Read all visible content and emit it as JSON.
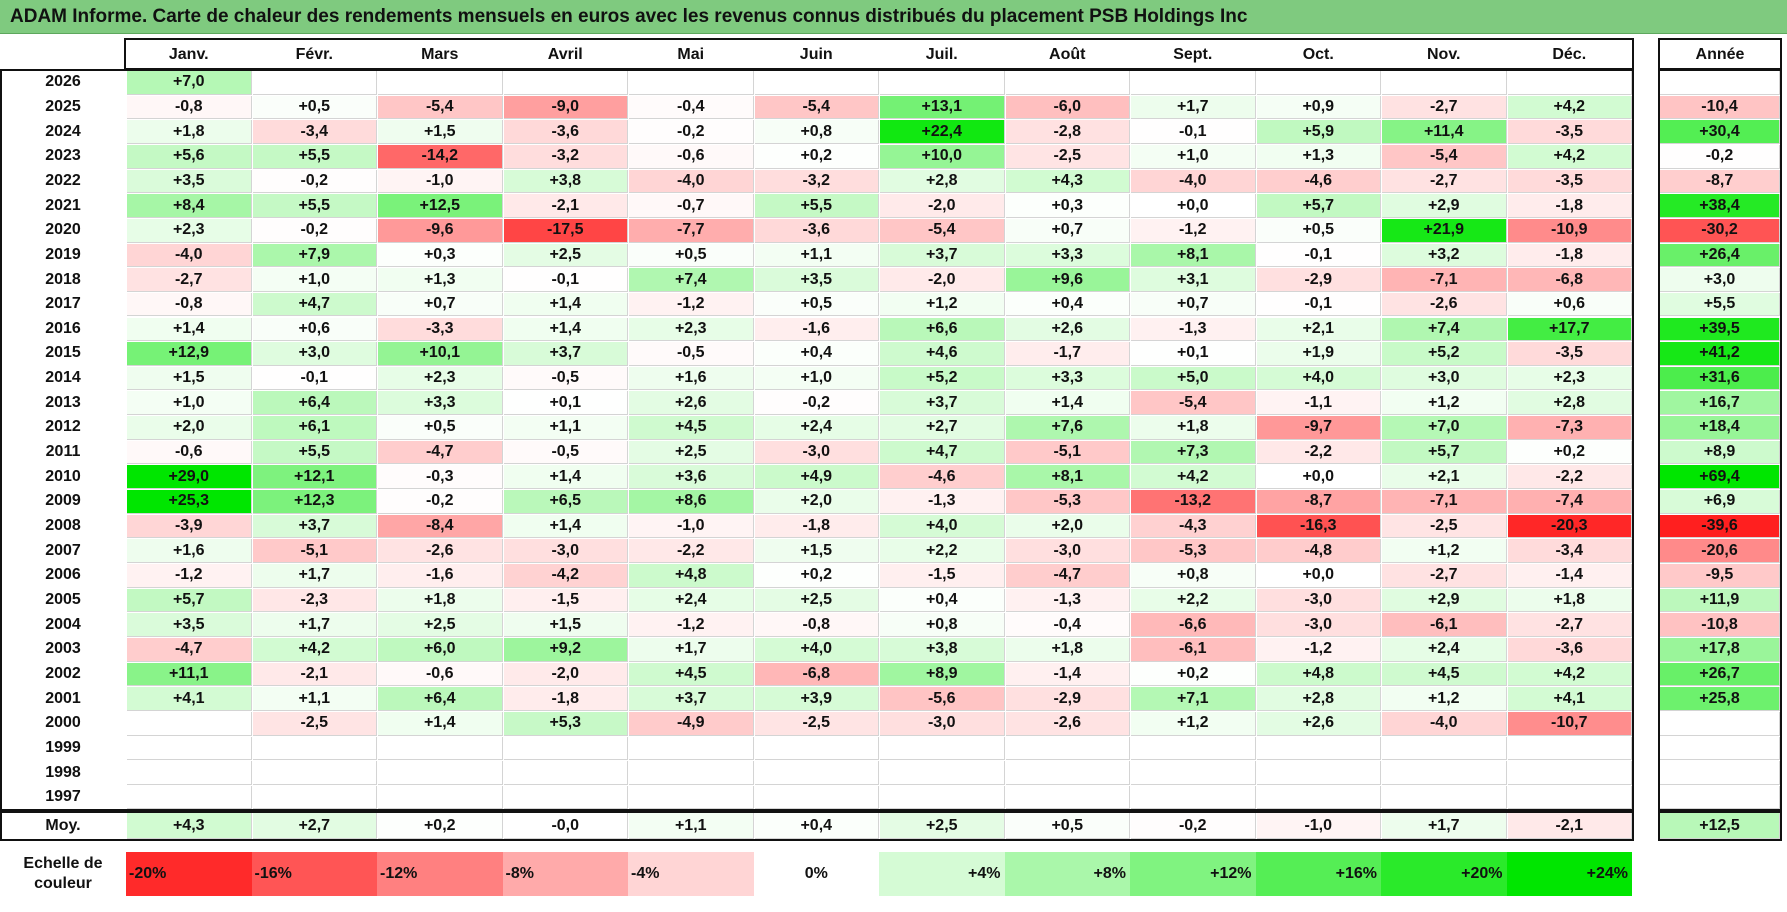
{
  "title": "ADAM Informe. Carte de chaleur des rendements mensuels en euros avec les revenus connus distribués du placement PSB Holdings Inc",
  "chart_data": {
    "type": "heatmap",
    "title": "ADAM Informe. Carte de chaleur des rendements mensuels en euros avec les revenus connus distribués du placement PSB Holdings Inc",
    "months": [
      "Janv.",
      "Févr.",
      "Mars",
      "Avril",
      "Mai",
      "Juin",
      "Juil.",
      "Août",
      "Sept.",
      "Oct.",
      "Nov.",
      "Déc."
    ],
    "year_header": "Année",
    "avg_label": "Moy.",
    "rows": [
      {
        "year": "2026",
        "values": [
          "+7,0",
          "",
          "",
          "",
          "",
          "",
          "",
          "",
          "",
          "",
          "",
          ""
        ],
        "annual": ""
      },
      {
        "year": "2025",
        "values": [
          "-0,8",
          "+0,5",
          "-5,4",
          "-9,0",
          "-0,4",
          "-5,4",
          "+13,1",
          "-6,0",
          "+1,7",
          "+0,9",
          "-2,7",
          "+4,2"
        ],
        "annual": "-10,4"
      },
      {
        "year": "2024",
        "values": [
          "+1,8",
          "-3,4",
          "+1,5",
          "-3,6",
          "-0,2",
          "+0,8",
          "+22,4",
          "-2,8",
          "-0,1",
          "+5,9",
          "+11,4",
          "-3,5"
        ],
        "annual": "+30,4"
      },
      {
        "year": "2023",
        "values": [
          "+5,6",
          "+5,5",
          "-14,2",
          "-3,2",
          "-0,6",
          "+0,2",
          "+10,0",
          "-2,5",
          "+1,0",
          "+1,3",
          "-5,4",
          "+4,2"
        ],
        "annual": "-0,2"
      },
      {
        "year": "2022",
        "values": [
          "+3,5",
          "-0,2",
          "-1,0",
          "+3,8",
          "-4,0",
          "-3,2",
          "+2,8",
          "+4,3",
          "-4,0",
          "-4,6",
          "-2,7",
          "-3,5"
        ],
        "annual": "-8,7"
      },
      {
        "year": "2021",
        "values": [
          "+8,4",
          "+5,5",
          "+12,5",
          "-2,1",
          "-0,7",
          "+5,5",
          "-2,0",
          "+0,3",
          "+0,0",
          "+5,7",
          "+2,9",
          "-1,8"
        ],
        "annual": "+38,4"
      },
      {
        "year": "2020",
        "values": [
          "+2,3",
          "-0,2",
          "-9,6",
          "-17,5",
          "-7,7",
          "-3,6",
          "-5,4",
          "+0,7",
          "-1,2",
          "+0,5",
          "+21,9",
          "-10,9"
        ],
        "annual": "-30,2"
      },
      {
        "year": "2019",
        "values": [
          "-4,0",
          "+7,9",
          "+0,3",
          "+2,5",
          "+0,5",
          "+1,1",
          "+3,7",
          "+3,3",
          "+8,1",
          "-0,1",
          "+3,2",
          "-1,8"
        ],
        "annual": "+26,4"
      },
      {
        "year": "2018",
        "values": [
          "-2,7",
          "+1,0",
          "+1,3",
          "-0,1",
          "+7,4",
          "+3,5",
          "-2,0",
          "+9,6",
          "+3,1",
          "-2,9",
          "-7,1",
          "-6,8"
        ],
        "annual": "+3,0"
      },
      {
        "year": "2017",
        "values": [
          "-0,8",
          "+4,7",
          "+0,7",
          "+1,4",
          "-1,2",
          "+0,5",
          "+1,2",
          "+0,4",
          "+0,7",
          "-0,1",
          "-2,6",
          "+0,6"
        ],
        "annual": "+5,5"
      },
      {
        "year": "2016",
        "values": [
          "+1,4",
          "+0,6",
          "-3,3",
          "+1,4",
          "+2,3",
          "-1,6",
          "+6,6",
          "+2,6",
          "-1,3",
          "+2,1",
          "+7,4",
          "+17,7"
        ],
        "annual": "+39,5"
      },
      {
        "year": "2015",
        "values": [
          "+12,9",
          "+3,0",
          "+10,1",
          "+3,7",
          "-0,5",
          "+0,4",
          "+4,6",
          "-1,7",
          "+0,1",
          "+1,9",
          "+5,2",
          "-3,5"
        ],
        "annual": "+41,2"
      },
      {
        "year": "2014",
        "values": [
          "+1,5",
          "-0,1",
          "+2,3",
          "-0,5",
          "+1,6",
          "+1,0",
          "+5,2",
          "+3,3",
          "+5,0",
          "+4,0",
          "+3,0",
          "+2,3"
        ],
        "annual": "+31,6"
      },
      {
        "year": "2013",
        "values": [
          "+1,0",
          "+6,4",
          "+3,3",
          "+0,1",
          "+2,6",
          "-0,2",
          "+3,7",
          "+1,4",
          "-5,4",
          "-1,1",
          "+1,2",
          "+2,8"
        ],
        "annual": "+16,7"
      },
      {
        "year": "2012",
        "values": [
          "+2,0",
          "+6,1",
          "+0,5",
          "+1,1",
          "+4,5",
          "+2,4",
          "+2,7",
          "+7,6",
          "+1,8",
          "-9,7",
          "+7,0",
          "-7,3"
        ],
        "annual": "+18,4"
      },
      {
        "year": "2011",
        "values": [
          "-0,6",
          "+5,5",
          "-4,7",
          "-0,5",
          "+2,5",
          "-3,0",
          "+4,7",
          "-5,1",
          "+7,3",
          "-2,2",
          "+5,7",
          "+0,2"
        ],
        "annual": "+8,9"
      },
      {
        "year": "2010",
        "values": [
          "+29,0",
          "+12,1",
          "-0,3",
          "+1,4",
          "+3,6",
          "+4,9",
          "-4,6",
          "+8,1",
          "+4,2",
          "+0,0",
          "+2,1",
          "-2,2"
        ],
        "annual": "+69,4"
      },
      {
        "year": "2009",
        "values": [
          "+25,3",
          "+12,3",
          "-0,2",
          "+6,5",
          "+8,6",
          "+2,0",
          "-1,3",
          "-5,3",
          "-13,2",
          "-8,7",
          "-7,1",
          "-7,4"
        ],
        "annual": "+6,9"
      },
      {
        "year": "2008",
        "values": [
          "-3,9",
          "+3,7",
          "-8,4",
          "+1,4",
          "-1,0",
          "-1,8",
          "+4,0",
          "+2,0",
          "-4,3",
          "-16,3",
          "-2,5",
          "-20,3"
        ],
        "annual": "-39,6"
      },
      {
        "year": "2007",
        "values": [
          "+1,6",
          "-5,1",
          "-2,6",
          "-3,0",
          "-2,2",
          "+1,5",
          "+2,2",
          "-3,0",
          "-5,3",
          "-4,8",
          "+1,2",
          "-3,4"
        ],
        "annual": "-20,6"
      },
      {
        "year": "2006",
        "values": [
          "-1,2",
          "+1,7",
          "-1,6",
          "-4,2",
          "+4,8",
          "+0,2",
          "-1,5",
          "-4,7",
          "+0,8",
          "+0,0",
          "-2,7",
          "-1,4"
        ],
        "annual": "-9,5"
      },
      {
        "year": "2005",
        "values": [
          "+5,7",
          "-2,3",
          "+1,8",
          "-1,5",
          "+2,4",
          "+2,5",
          "+0,4",
          "-1,3",
          "+2,2",
          "-3,0",
          "+2,9",
          "+1,8"
        ],
        "annual": "+11,9"
      },
      {
        "year": "2004",
        "values": [
          "+3,5",
          "+1,7",
          "+2,5",
          "+1,5",
          "-1,2",
          "-0,8",
          "+0,8",
          "-0,4",
          "-6,6",
          "-3,0",
          "-6,1",
          "-2,7"
        ],
        "annual": "-10,8"
      },
      {
        "year": "2003",
        "values": [
          "-4,7",
          "+4,2",
          "+6,0",
          "+9,2",
          "+1,7",
          "+4,0",
          "+3,8",
          "+1,8",
          "-6,1",
          "-1,2",
          "+2,4",
          "-3,6"
        ],
        "annual": "+17,8"
      },
      {
        "year": "2002",
        "values": [
          "+11,1",
          "-2,1",
          "-0,6",
          "-2,0",
          "+4,5",
          "-6,8",
          "+8,9",
          "-1,4",
          "+0,2",
          "+4,8",
          "+4,5",
          "+4,2"
        ],
        "annual": "+26,7"
      },
      {
        "year": "2001",
        "values": [
          "+4,1",
          "+1,1",
          "+6,4",
          "-1,8",
          "+3,7",
          "+3,9",
          "-5,6",
          "-2,9",
          "+7,1",
          "+2,8",
          "+1,2",
          "+4,1"
        ],
        "annual": "+25,8"
      },
      {
        "year": "2000",
        "values": [
          "",
          "-2,5",
          "+1,4",
          "+5,3",
          "-4,9",
          "-2,5",
          "-3,0",
          "-2,6",
          "+1,2",
          "+2,6",
          "-4,0",
          "-10,7"
        ],
        "annual": ""
      },
      {
        "year": "1999",
        "values": [
          "",
          "",
          "",
          "",
          "",
          "",
          "",
          "",
          "",
          "",
          "",
          ""
        ],
        "annual": ""
      },
      {
        "year": "1998",
        "values": [
          "",
          "",
          "",
          "",
          "",
          "",
          "",
          "",
          "",
          "",
          "",
          ""
        ],
        "annual": ""
      },
      {
        "year": "1997",
        "values": [
          "",
          "",
          "",
          "",
          "",
          "",
          "",
          "",
          "",
          "",
          "",
          ""
        ],
        "annual": ""
      }
    ],
    "averages": [
      "+4,3",
      "+2,7",
      "+0,2",
      "-0,0",
      "+1,1",
      "+0,4",
      "+2,5",
      "+0,5",
      "-0,2",
      "-1,0",
      "+1,7",
      "-2,1"
    ],
    "annual_average": "+12,5",
    "color_scale": {
      "label": "Echelle de couleur",
      "stops": [
        "-20%",
        "-16%",
        "-12%",
        "-8%",
        "-4%",
        "0%",
        "+4%",
        "+8%",
        "+12%",
        "+16%",
        "+20%",
        "+24%"
      ],
      "negative_color": "#ff0000",
      "positive_color": "#00e600",
      "neutral_color": "#ffffff"
    }
  }
}
